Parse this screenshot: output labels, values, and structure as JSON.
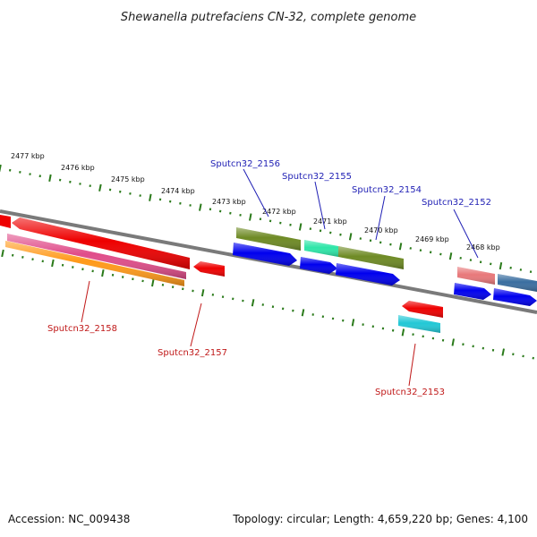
{
  "title": "Shewanella putrefaciens CN-32, complete genome",
  "ruler": {
    "ticks": [
      "2477 kbp",
      "2476 kbp",
      "2475 kbp",
      "2474 kbp",
      "2473 kbp",
      "2472 kbp",
      "2471 kbp",
      "2470 kbp",
      "2469 kbp",
      "2468 kbp"
    ]
  },
  "gene_labels": {
    "top": [
      "Sputcn32_2156",
      "Sputcn32_2155",
      "Sputcn32_2154",
      "Sputcn32_2152"
    ],
    "bottom": [
      "Sputcn32_2158",
      "Sputcn32_2157",
      "Sputcn32_2153"
    ]
  },
  "colors": {
    "backbone": "#7a7a7a",
    "tick": "#2a7a1a",
    "forward": "#0000ee",
    "reverse": "#ee0000",
    "olive": "#6e8a24",
    "mint": "#2ee6a8",
    "pink": "#e04d8a",
    "orange": "#ff9a1a",
    "cyan": "#22c8d6",
    "salmon": "#e8787a",
    "steel": "#3a6ea0",
    "label_top": "#1f1fb4",
    "label_bottom": "#c01818"
  },
  "footer": {
    "accession": "Accession: NC_009438",
    "topology": "Topology: circular; Length: 4,659,220 bp; Genes: 4,100"
  }
}
